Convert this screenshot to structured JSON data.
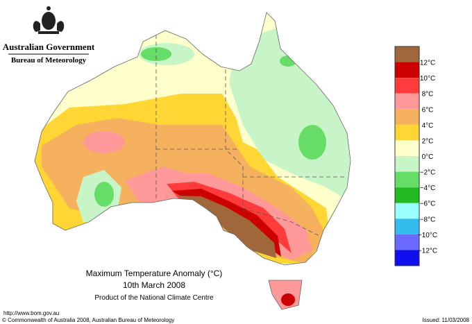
{
  "header": {
    "government": "Australian Government",
    "bureau": "Bureau of Meteorology"
  },
  "legend": {
    "colors": [
      "#a0673b",
      "#cc0000",
      "#ff3b3b",
      "#ff9999",
      "#f5b15e",
      "#ffd633",
      "#ffffcc",
      "#c8f5c8",
      "#66dd66",
      "#22bb22",
      "#99ffff",
      "#33bbee",
      "#6a6aff",
      "#1010ee"
    ],
    "labels": [
      "12°C",
      "10°C",
      "8°C",
      "6°C",
      "4°C",
      "2°C",
      "0°C",
      "−2°C",
      "−4°C",
      "−6°C",
      "−8°C",
      "−10°C",
      "−12°C"
    ]
  },
  "title": {
    "line1": "Maximum Temperature Anomaly (°C)",
    "line2": "10th March 2008",
    "line3": "Product of the National Climate Centre"
  },
  "footer": {
    "url": "http://www.bom.gov.au",
    "copyright": "© Commonwealth of Australia 2008, Australian Bureau of Meteorology",
    "issued": "Issued: 11/03/2008"
  }
}
